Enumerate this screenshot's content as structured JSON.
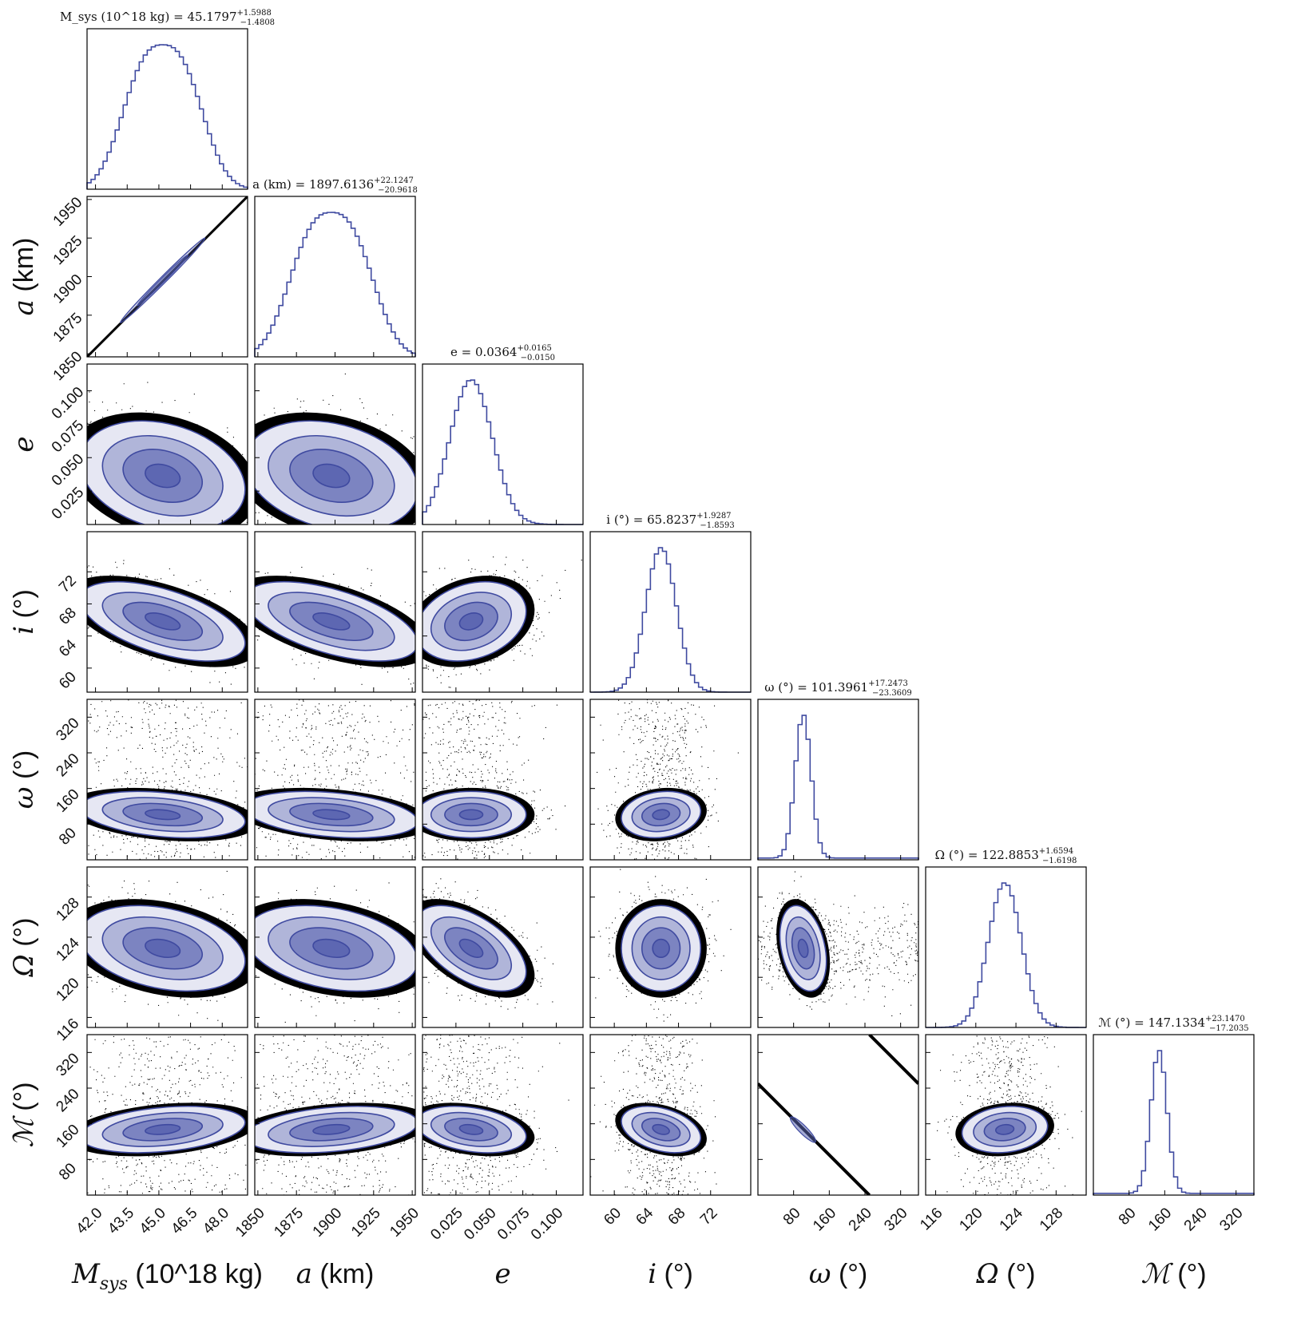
{
  "chart_data": {
    "type": "scatter",
    "layout": "corner",
    "params": [
      {
        "key": "msys",
        "sym": "M",
        "sym_sub": "sys",
        "unit": " (10^18 kg)",
        "label": "M_sys (10^18 kg)",
        "title_lhs": "M_sys (10^18 kg) = ",
        "median": "45.1797",
        "err_plus": "+1.5988",
        "err_minus": "−1.4808",
        "range": [
          41.6,
          49.2
        ],
        "ticks": [
          42.0,
          43.5,
          45.0,
          46.5,
          48.0
        ],
        "tick_labels": [
          "42.0",
          "43.5",
          "45.0",
          "46.5",
          "48.0"
        ],
        "mean": 45.18,
        "sd": 1.5,
        "skew": 0.4
      },
      {
        "key": "a",
        "sym": "a",
        "sym_sub": "",
        "unit": " (km)",
        "label": "a (km)",
        "title_lhs": "a (km) = ",
        "median": "1897.6136",
        "err_plus": "+22.1247",
        "err_minus": "−20.9618",
        "range": [
          1848,
          1952
        ],
        "ticks": [
          1850,
          1875,
          1900,
          1925,
          1950
        ],
        "tick_labels": [
          "1850",
          "1875",
          "1900",
          "1925",
          "1950"
        ],
        "mean": 1897.6,
        "sd": 21.5,
        "skew": 0.4
      },
      {
        "key": "e",
        "sym": "e",
        "sym_sub": "",
        "unit": "",
        "label": "e",
        "title_lhs": "e = ",
        "median": "0.0364",
        "err_plus": "+0.0165",
        "err_minus": "−0.0150",
        "range": [
          0.0,
          0.12
        ],
        "ticks": [
          0.025,
          0.05,
          0.075,
          0.1
        ],
        "tick_labels": [
          "0.025",
          "0.050",
          "0.075",
          "0.100"
        ],
        "mean": 0.0364,
        "sd": 0.0158,
        "skew": 0.0
      },
      {
        "key": "i",
        "sym": "i",
        "sym_sub": "",
        "unit": " (°)",
        "label": "i (°)",
        "title_lhs": "i (°) = ",
        "median": "65.8237",
        "err_plus": "+1.9287",
        "err_minus": "−1.8593",
        "range": [
          57,
          77
        ],
        "ticks": [
          60,
          64,
          68,
          72
        ],
        "tick_labels": [
          "60",
          "64",
          "68",
          "72"
        ],
        "mean": 65.82,
        "sd": 1.9,
        "skew": 0.0
      },
      {
        "key": "w",
        "sym": "ω",
        "sym_sub": "",
        "unit": " (°)",
        "label": "ω (°)",
        "title_lhs": "ω (°) = ",
        "median": "101.3961",
        "err_plus": "+17.2473",
        "err_minus": "−23.3609",
        "range": [
          0,
          360
        ],
        "ticks": [
          80,
          160,
          240,
          320
        ],
        "tick_labels": [
          "80",
          "160",
          "240",
          "320"
        ],
        "mean": 101.4,
        "sd": 20,
        "skew": 0.0
      },
      {
        "key": "O",
        "sym": "Ω",
        "sym_sub": "",
        "unit": " (°)",
        "label": "Ω (°)",
        "title_lhs": "Ω (°) = ",
        "median": "122.8853",
        "err_plus": "+1.6594",
        "err_minus": "−1.6198",
        "range": [
          115,
          131
        ],
        "ticks": [
          116,
          120,
          124,
          128
        ],
        "tick_labels": [
          "116",
          "120",
          "124",
          "128"
        ],
        "mean": 122.89,
        "sd": 1.64,
        "skew": 0.0
      },
      {
        "key": "M",
        "sym": "ℳ",
        "sym_sub": "",
        "unit": " (°)",
        "label": "ℳ (°)",
        "title_lhs": "ℳ (°) = ",
        "median": "147.1334",
        "err_plus": "+23.1470",
        "err_minus": "−17.2035",
        "range": [
          0,
          360
        ],
        "ticks": [
          80,
          160,
          240,
          320
        ],
        "tick_labels": [
          "80",
          "160",
          "240",
          "320"
        ],
        "mean": 147.1,
        "sd": 20,
        "skew": 0.0
      }
    ],
    "correlations": {
      "a|msys": 0.998,
      "e|msys": -0.25,
      "e|a": -0.25,
      "i|msys": -0.55,
      "i|a": -0.55,
      "i|e": 0.25,
      "w|msys": -0.3,
      "w|a": -0.3,
      "w|e": 0.0,
      "w|i": 0.15,
      "O|msys": -0.3,
      "O|a": -0.3,
      "O|e": -0.55,
      "O|i": 0.0,
      "O|w": -0.3,
      "M|msys": 0.3,
      "M|a": 0.3,
      "M|e": -0.3,
      "M|i": -0.35,
      "M|w": -0.99,
      "M|O": 0.15
    },
    "colors": {
      "contour_line": "#3f4aa0",
      "contour_fill": "#5a64b0",
      "scatter": "#000000",
      "hist": "#3f4aa0",
      "frame": "#000000"
    },
    "grid": false,
    "legend": "none"
  }
}
